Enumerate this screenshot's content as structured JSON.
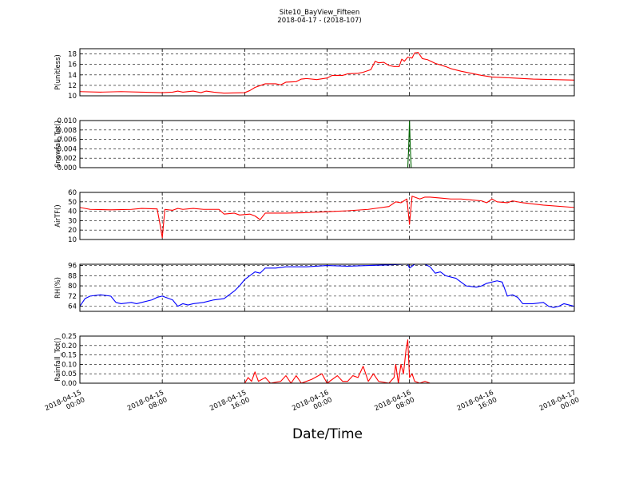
{
  "chart_data": {
    "type": "line",
    "title": "Site10_BayView_Fifteen",
    "subtitle": "2018-04-17 - (2018-107)",
    "xlabel": "Date/Time",
    "x_range": [
      "2018-04-15 00:00",
      "2018-04-17 00:00"
    ],
    "x_ticks": [
      {
        "value": "2018-04-15 00:00",
        "date": "2018-04-15",
        "time": "00:00"
      },
      {
        "value": "2018-04-15 08:00",
        "date": "2018-04-15",
        "time": "08:00"
      },
      {
        "value": "2018-04-15 16:00",
        "date": "2018-04-15",
        "time": "16:00"
      },
      {
        "value": "2018-04-16 00:00",
        "date": "2018-04-16",
        "time": "00:00"
      },
      {
        "value": "2018-04-16 08:00",
        "date": "2018-04-16",
        "time": "08:00"
      },
      {
        "value": "2018-04-16 16:00",
        "date": "2018-04-16",
        "time": "16:00"
      },
      {
        "value": "2018-04-17 00:00",
        "date": "2018-04-17",
        "time": "00:00"
      }
    ],
    "grid": true,
    "panels": [
      {
        "ylabel": "P(unitless)",
        "ylim": [
          10,
          19
        ],
        "yticks": [
          "10",
          "12",
          "14",
          "16",
          "18"
        ],
        "color": "#ff0000",
        "points": [
          [
            "2018-04-15 00:00",
            10.8
          ],
          [
            "2018-04-15 02:00",
            10.7
          ],
          [
            "2018-04-15 04:00",
            10.8
          ],
          [
            "2018-04-15 06:00",
            10.7
          ],
          [
            "2018-04-15 08:00",
            10.6
          ],
          [
            "2018-04-15 09:00",
            10.7
          ],
          [
            "2018-04-15 09:30",
            10.9
          ],
          [
            "2018-04-15 10:00",
            10.7
          ],
          [
            "2018-04-15 11:00",
            10.9
          ],
          [
            "2018-04-15 11:45",
            10.6
          ],
          [
            "2018-04-15 12:15",
            10.9
          ],
          [
            "2018-04-15 13:00",
            10.7
          ],
          [
            "2018-04-15 14:00",
            10.5
          ],
          [
            "2018-04-15 16:00",
            10.6
          ],
          [
            "2018-04-15 16:30",
            11.0
          ],
          [
            "2018-04-15 17:00",
            11.6
          ],
          [
            "2018-04-15 18:00",
            12.3
          ],
          [
            "2018-04-15 19:00",
            12.3
          ],
          [
            "2018-04-15 19:30",
            12.1
          ],
          [
            "2018-04-15 20:00",
            12.6
          ],
          [
            "2018-04-15 21:00",
            12.7
          ],
          [
            "2018-04-15 21:30",
            13.2
          ],
          [
            "2018-04-15 22:00",
            13.3
          ],
          [
            "2018-04-15 23:00",
            13.1
          ],
          [
            "2018-04-16 00:00",
            13.4
          ],
          [
            "2018-04-16 00:30",
            13.9
          ],
          [
            "2018-04-16 01:30",
            13.9
          ],
          [
            "2018-04-16 02:00",
            14.2
          ],
          [
            "2018-04-16 03:00",
            14.3
          ],
          [
            "2018-04-16 03:30",
            14.5
          ],
          [
            "2018-04-16 04:15",
            15.0
          ],
          [
            "2018-04-16 04:40",
            16.6
          ],
          [
            "2018-04-16 05:00",
            16.3
          ],
          [
            "2018-04-16 05:30",
            16.4
          ],
          [
            "2018-04-16 06:00",
            15.8
          ],
          [
            "2018-04-16 06:30",
            15.6
          ],
          [
            "2018-04-16 07:00",
            15.6
          ],
          [
            "2018-04-16 07:15",
            17.0
          ],
          [
            "2018-04-16 07:30",
            16.6
          ],
          [
            "2018-04-16 07:50",
            17.4
          ],
          [
            "2018-04-16 08:15",
            17.2
          ],
          [
            "2018-04-16 08:30",
            18.2
          ],
          [
            "2018-04-16 08:50",
            18.3
          ],
          [
            "2018-04-16 09:15",
            17.1
          ],
          [
            "2018-04-16 09:45",
            16.9
          ],
          [
            "2018-04-16 10:30",
            16.2
          ],
          [
            "2018-04-16 11:30",
            15.6
          ],
          [
            "2018-04-16 12:00",
            15.2
          ],
          [
            "2018-04-16 13:00",
            14.7
          ],
          [
            "2018-04-16 14:00",
            14.3
          ],
          [
            "2018-04-16 15:00",
            13.9
          ],
          [
            "2018-04-16 16:00",
            13.6
          ],
          [
            "2018-04-16 18:00",
            13.4
          ],
          [
            "2018-04-16 20:00",
            13.2
          ],
          [
            "2018-04-16 22:00",
            13.1
          ],
          [
            "2018-04-17 00:00",
            13.0
          ]
        ]
      },
      {
        "ylabel": "Snowfall_Tot()",
        "ylim": [
          0,
          0.01
        ],
        "yticks": [
          "0.000",
          "0.002",
          "0.004",
          "0.006",
          "0.008",
          "0.010"
        ],
        "color": "#006400",
        "points": [
          [
            "2018-04-15 00:00",
            0
          ],
          [
            "2018-04-16 07:50",
            0
          ],
          [
            "2018-04-16 07:55",
            0.004
          ],
          [
            "2018-04-16 08:00",
            0.01
          ],
          [
            "2018-04-16 08:05",
            0.004
          ],
          [
            "2018-04-16 08:10",
            0
          ],
          [
            "2018-04-17 00:00",
            0
          ]
        ]
      },
      {
        "ylabel": "AirTF()",
        "ylim": [
          10,
          60
        ],
        "yticks": [
          "10",
          "20",
          "30",
          "40",
          "50",
          "60"
        ],
        "color": "#ff0000",
        "points": [
          [
            "2018-04-15 00:00",
            44
          ],
          [
            "2018-04-15 01:00",
            42
          ],
          [
            "2018-04-15 03:00",
            41.5
          ],
          [
            "2018-04-15 05:00",
            42
          ],
          [
            "2018-04-15 06:00",
            43
          ],
          [
            "2018-04-15 07:30",
            42.5
          ],
          [
            "2018-04-15 07:45",
            28
          ],
          [
            "2018-04-15 08:00",
            12
          ],
          [
            "2018-04-15 08:15",
            42
          ],
          [
            "2018-04-15 09:00",
            41
          ],
          [
            "2018-04-15 09:30",
            43
          ],
          [
            "2018-04-15 10:00",
            42
          ],
          [
            "2018-04-15 11:00",
            43
          ],
          [
            "2018-04-15 12:00",
            42
          ],
          [
            "2018-04-15 13:30",
            42
          ],
          [
            "2018-04-15 14:00",
            37
          ],
          [
            "2018-04-15 15:00",
            38
          ],
          [
            "2018-04-15 15:30",
            36
          ],
          [
            "2018-04-15 16:30",
            37
          ],
          [
            "2018-04-15 17:00",
            35
          ],
          [
            "2018-04-15 17:30",
            31
          ],
          [
            "2018-04-15 18:00",
            38
          ],
          [
            "2018-04-15 20:00",
            38
          ],
          [
            "2018-04-15 22:00",
            38.5
          ],
          [
            "2018-04-16 00:00",
            39.5
          ],
          [
            "2018-04-16 02:00",
            40.5
          ],
          [
            "2018-04-16 04:00",
            42
          ],
          [
            "2018-04-16 06:00",
            45
          ],
          [
            "2018-04-16 06:40",
            50
          ],
          [
            "2018-04-16 07:10",
            49
          ],
          [
            "2018-04-16 07:45",
            53
          ],
          [
            "2018-04-16 08:00",
            26
          ],
          [
            "2018-04-16 08:15",
            56
          ],
          [
            "2018-04-16 09:00",
            53
          ],
          [
            "2018-04-16 09:30",
            55
          ],
          [
            "2018-04-16 10:00",
            55
          ],
          [
            "2018-04-16 11:00",
            54
          ],
          [
            "2018-04-16 12:00",
            53
          ],
          [
            "2018-04-16 13:00",
            53
          ],
          [
            "2018-04-16 14:00",
            52
          ],
          [
            "2018-04-16 15:00",
            51
          ],
          [
            "2018-04-16 15:30",
            49
          ],
          [
            "2018-04-16 16:00",
            53
          ],
          [
            "2018-04-16 16:30",
            50
          ],
          [
            "2018-04-16 17:30",
            49
          ],
          [
            "2018-04-16 18:00",
            51
          ],
          [
            "2018-04-16 19:00",
            49
          ],
          [
            "2018-04-16 21:00",
            46.5
          ],
          [
            "2018-04-17 00:00",
            44
          ]
        ]
      },
      {
        "ylabel": "RH(%)",
        "ylim": [
          60,
          97
        ],
        "yticks": [
          "64",
          "72",
          "80",
          "88",
          "96"
        ],
        "color": "#0000ff",
        "points": [
          [
            "2018-04-15 00:00",
            64
          ],
          [
            "2018-04-15 00:30",
            70
          ],
          [
            "2018-04-15 01:00",
            72
          ],
          [
            "2018-04-15 02:00",
            73
          ],
          [
            "2018-04-15 03:00",
            72
          ],
          [
            "2018-04-15 03:30",
            67
          ],
          [
            "2018-04-15 04:00",
            66
          ],
          [
            "2018-04-15 05:00",
            67
          ],
          [
            "2018-04-15 05:30",
            66
          ],
          [
            "2018-04-15 06:00",
            67
          ],
          [
            "2018-04-15 07:00",
            69
          ],
          [
            "2018-04-15 07:30",
            71
          ],
          [
            "2018-04-15 08:00",
            72
          ],
          [
            "2018-04-15 09:00",
            69
          ],
          [
            "2018-04-15 09:30",
            64
          ],
          [
            "2018-04-15 10:00",
            66
          ],
          [
            "2018-04-15 10:30",
            65
          ],
          [
            "2018-04-15 11:00",
            66
          ],
          [
            "2018-04-15 12:00",
            67
          ],
          [
            "2018-04-15 13:00",
            69
          ],
          [
            "2018-04-15 14:00",
            70
          ],
          [
            "2018-04-15 15:00",
            76
          ],
          [
            "2018-04-15 15:30",
            80
          ],
          [
            "2018-04-15 16:00",
            85
          ],
          [
            "2018-04-15 16:30",
            88
          ],
          [
            "2018-04-15 17:00",
            91
          ],
          [
            "2018-04-15 17:30",
            90
          ],
          [
            "2018-04-15 18:00",
            94
          ],
          [
            "2018-04-15 19:00",
            94
          ],
          [
            "2018-04-15 20:00",
            95
          ],
          [
            "2018-04-15 22:00",
            95
          ],
          [
            "2018-04-16 00:00",
            96
          ],
          [
            "2018-04-16 02:00",
            95.5
          ],
          [
            "2018-04-16 04:00",
            96
          ],
          [
            "2018-04-16 06:00",
            96.5
          ],
          [
            "2018-04-16 07:30",
            97
          ],
          [
            "2018-04-16 07:50",
            97
          ],
          [
            "2018-04-16 08:00",
            94
          ],
          [
            "2018-04-16 08:30",
            97
          ],
          [
            "2018-04-16 09:30",
            97
          ],
          [
            "2018-04-16 10:00",
            95
          ],
          [
            "2018-04-16 10:30",
            90
          ],
          [
            "2018-04-16 11:00",
            91
          ],
          [
            "2018-04-16 11:30",
            88
          ],
          [
            "2018-04-16 12:30",
            86
          ],
          [
            "2018-04-16 13:30",
            80
          ],
          [
            "2018-04-16 14:30",
            79
          ],
          [
            "2018-04-16 15:00",
            80
          ],
          [
            "2018-04-16 15:30",
            82
          ],
          [
            "2018-04-16 16:30",
            84
          ],
          [
            "2018-04-16 17:00",
            83
          ],
          [
            "2018-04-16 17:30",
            72
          ],
          [
            "2018-04-16 18:00",
            73
          ],
          [
            "2018-04-16 18:30",
            71
          ],
          [
            "2018-04-16 19:00",
            66
          ],
          [
            "2018-04-16 20:00",
            66
          ],
          [
            "2018-04-16 21:00",
            67
          ],
          [
            "2018-04-16 21:30",
            64
          ],
          [
            "2018-04-16 22:00",
            63
          ],
          [
            "2018-04-16 22:30",
            64
          ],
          [
            "2018-04-16 23:00",
            66
          ],
          [
            "2018-04-16 23:30",
            65
          ],
          [
            "2018-04-17 00:00",
            64
          ]
        ]
      },
      {
        "ylabel": "Rainfall_Tot()",
        "ylim": [
          0,
          0.25
        ],
        "yticks": [
          "0.00",
          "0.05",
          "0.10",
          "0.15",
          "0.20",
          "0.25"
        ],
        "color": "#ff0000",
        "points": [
          [
            "2018-04-15 00:00",
            0
          ],
          [
            "2018-04-15 16:00",
            0
          ],
          [
            "2018-04-15 16:20",
            0.03
          ],
          [
            "2018-04-15 16:40",
            0.01
          ],
          [
            "2018-04-15 17:00",
            0.06
          ],
          [
            "2018-04-15 17:20",
            0.01
          ],
          [
            "2018-04-15 18:00",
            0.03
          ],
          [
            "2018-04-15 18:30",
            0
          ],
          [
            "2018-04-15 19:30",
            0.01
          ],
          [
            "2018-04-15 20:00",
            0.04
          ],
          [
            "2018-04-15 20:30",
            0
          ],
          [
            "2018-04-15 21:00",
            0.04
          ],
          [
            "2018-04-15 21:30",
            0
          ],
          [
            "2018-04-15 22:30",
            0.02
          ],
          [
            "2018-04-15 23:30",
            0.05
          ],
          [
            "2018-04-16 00:00",
            0
          ],
          [
            "2018-04-16 01:00",
            0.04
          ],
          [
            "2018-04-16 01:30",
            0.01
          ],
          [
            "2018-04-16 02:00",
            0.01
          ],
          [
            "2018-04-16 02:30",
            0.04
          ],
          [
            "2018-04-16 03:00",
            0.03
          ],
          [
            "2018-04-16 03:30",
            0.09
          ],
          [
            "2018-04-16 04:00",
            0.01
          ],
          [
            "2018-04-16 04:30",
            0.05
          ],
          [
            "2018-04-16 05:00",
            0.01
          ],
          [
            "2018-04-16 06:00",
            0.0
          ],
          [
            "2018-04-16 06:30",
            0.03
          ],
          [
            "2018-04-16 06:40",
            0.1
          ],
          [
            "2018-04-16 06:55",
            0.0
          ],
          [
            "2018-04-16 07:10",
            0.1
          ],
          [
            "2018-04-16 07:25",
            0.05
          ],
          [
            "2018-04-16 07:40",
            0.18
          ],
          [
            "2018-04-16 07:50",
            0.23
          ],
          [
            "2018-04-16 08:00",
            0.03
          ],
          [
            "2018-04-16 08:15",
            0.05
          ],
          [
            "2018-04-16 08:30",
            0.01
          ],
          [
            "2018-04-16 09:00",
            0.0
          ],
          [
            "2018-04-16 09:30",
            0.01
          ],
          [
            "2018-04-16 10:00",
            0
          ],
          [
            "2018-04-17 00:00",
            0
          ]
        ]
      }
    ]
  }
}
